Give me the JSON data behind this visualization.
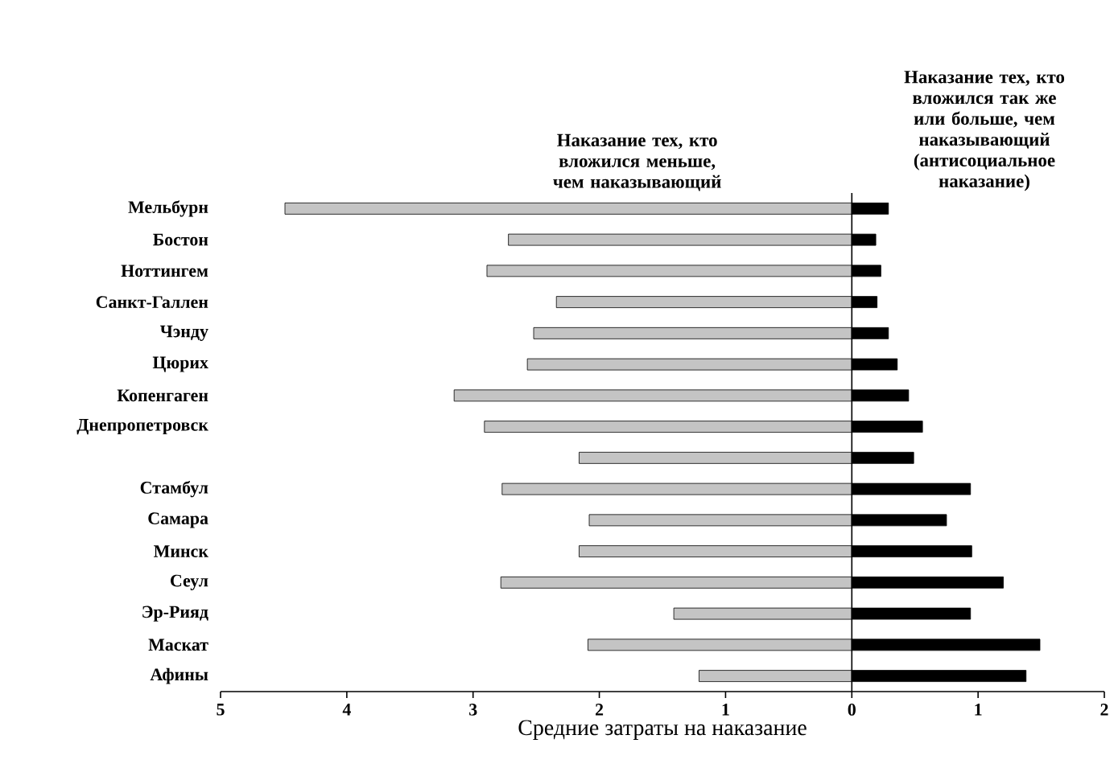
{
  "chart_data": {
    "type": "bar",
    "orientation": "horizontal",
    "xlabel": "Средние затраты на наказание",
    "categories": [
      "Мельбурн",
      "Бостон",
      "Ноттингем",
      "Санкт-Галлен",
      "Чэнду",
      "Цюрих",
      "Копенгаген",
      "Днепропетровск",
      null,
      "Стамбул",
      "Самара",
      "Минск",
      "Сеул",
      "Эр-Рияд",
      "Маскат",
      "Афины"
    ],
    "series": [
      {
        "name": "Наказание тех, кто вложился меньше, чем наказывающий",
        "color": "#c4c4c4",
        "values": [
          -4.49,
          -2.72,
          -2.89,
          -2.34,
          -2.52,
          -2.57,
          -3.15,
          -2.91,
          -2.16,
          -2.77,
          -2.08,
          -2.16,
          -2.78,
          -1.41,
          -2.09,
          -1.21
        ]
      },
      {
        "name": "Наказание тех, кто вложился так же или больше, чем наказывающий (антисоциальное наказание)",
        "color": "#000000",
        "values": [
          0.29,
          0.19,
          0.23,
          0.2,
          0.29,
          0.36,
          0.45,
          0.56,
          0.49,
          0.94,
          0.75,
          0.95,
          1.2,
          0.94,
          1.49,
          1.38
        ]
      }
    ],
    "xlim": [
      -5,
      2
    ],
    "xticks": [
      {
        "value": -5,
        "label": "5"
      },
      {
        "value": -4,
        "label": "4"
      },
      {
        "value": -3,
        "label": "3"
      },
      {
        "value": -2,
        "label": "2"
      },
      {
        "value": -1,
        "label": "1"
      },
      0,
      1,
      2
    ],
    "stacked": true
  }
}
